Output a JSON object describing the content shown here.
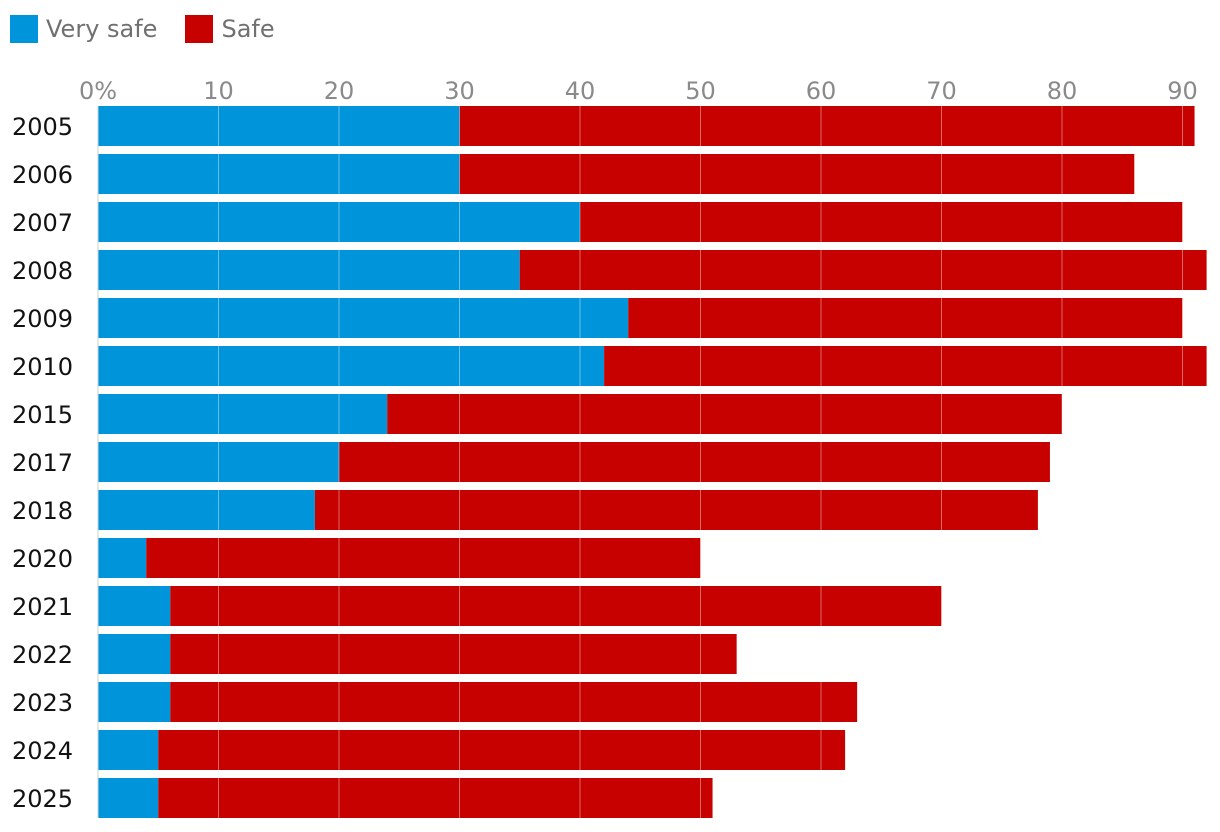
{
  "chart_data": {
    "type": "bar",
    "orientation": "horizontal",
    "stacked": true,
    "categories": [
      "2005",
      "2006",
      "2007",
      "2008",
      "2009",
      "2010",
      "2015",
      "2017",
      "2018",
      "2020",
      "2021",
      "2022",
      "2023",
      "2024",
      "2025"
    ],
    "series": [
      {
        "name": "Very safe",
        "color": "#0094db",
        "values": [
          30,
          30,
          40,
          35,
          44,
          42,
          24,
          20,
          18,
          4,
          6,
          6,
          6,
          5,
          5
        ]
      },
      {
        "name": "Safe",
        "color": "#c70000",
        "values": [
          61,
          56,
          50,
          57,
          46,
          50,
          56,
          59,
          60,
          46,
          64,
          47,
          57,
          57,
          46
        ]
      }
    ],
    "x_ticks": [
      "0%",
      "10",
      "20",
      "30",
      "40",
      "50",
      "60",
      "70",
      "80",
      "90"
    ],
    "xlim": [
      0,
      92
    ],
    "grid": true,
    "legend_position": "top-left",
    "title": "",
    "xlabel": "",
    "ylabel": ""
  }
}
